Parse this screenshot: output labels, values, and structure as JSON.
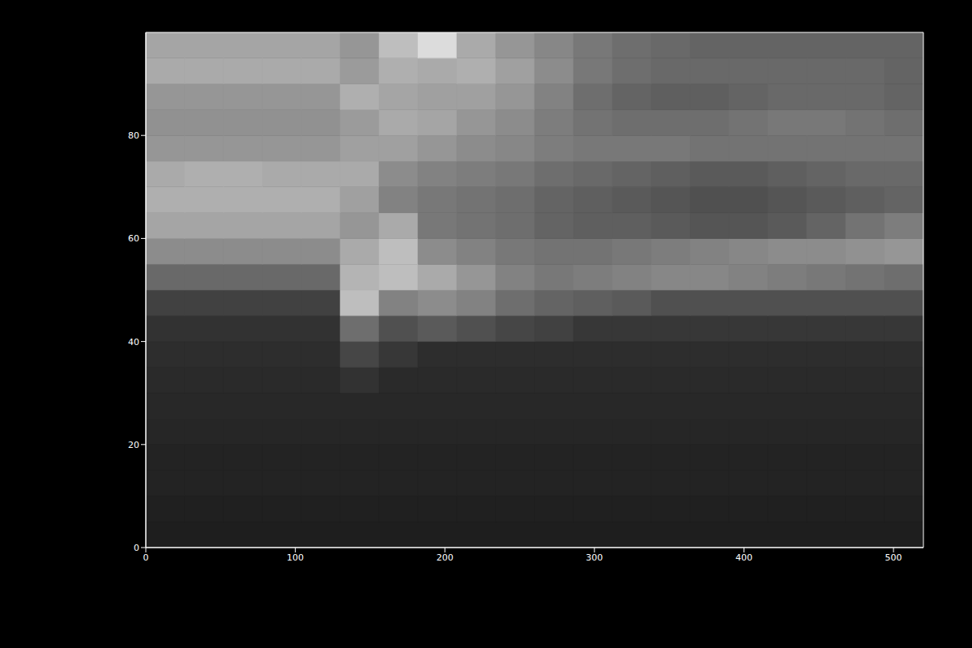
{
  "chart_data": {
    "type": "heatmap",
    "xlim": [
      0,
      520
    ],
    "ylim": [
      0,
      100
    ],
    "xticks": [
      0,
      100,
      200,
      300,
      400,
      500
    ],
    "yticks": [
      0,
      20,
      40,
      60,
      80
    ],
    "cell_x": [
      0,
      26,
      52,
      78,
      104,
      130,
      156,
      182,
      208,
      234,
      260,
      286,
      312,
      338,
      364,
      390,
      416,
      442,
      468,
      494,
      520
    ],
    "cell_y": [
      0,
      5,
      10,
      15,
      20,
      25,
      30,
      35,
      40,
      45,
      50,
      55,
      60,
      65,
      70,
      75,
      80,
      85,
      90,
      95,
      100
    ],
    "zlim": [
      0,
      255
    ],
    "z": [
      [
        30,
        30,
        30,
        30,
        30,
        30,
        30,
        30,
        30,
        30,
        30,
        30,
        30,
        30,
        30,
        30,
        30,
        30,
        30,
        30
      ],
      [
        32,
        32,
        32,
        32,
        32,
        32,
        32,
        32,
        32,
        32,
        32,
        32,
        32,
        32,
        32,
        32,
        32,
        32,
        32,
        32
      ],
      [
        35,
        35,
        35,
        35,
        35,
        35,
        35,
        35,
        35,
        35,
        35,
        35,
        35,
        35,
        35,
        35,
        35,
        35,
        35,
        35
      ],
      [
        35,
        35,
        35,
        35,
        35,
        35,
        35,
        35,
        35,
        35,
        35,
        35,
        35,
        35,
        35,
        35,
        35,
        35,
        35,
        35
      ],
      [
        38,
        38,
        38,
        38,
        38,
        38,
        38,
        38,
        38,
        38,
        38,
        38,
        38,
        38,
        38,
        38,
        38,
        38,
        38,
        38
      ],
      [
        40,
        40,
        40,
        40,
        40,
        40,
        40,
        40,
        40,
        40,
        40,
        40,
        40,
        40,
        40,
        40,
        40,
        40,
        40,
        40
      ],
      [
        42,
        42,
        42,
        42,
        42,
        50,
        42,
        42,
        42,
        42,
        42,
        42,
        42,
        42,
        42,
        42,
        42,
        42,
        42,
        42
      ],
      [
        45,
        45,
        45,
        45,
        45,
        70,
        55,
        45,
        45,
        45,
        45,
        45,
        45,
        45,
        45,
        45,
        45,
        45,
        45,
        45
      ],
      [
        50,
        50,
        50,
        50,
        50,
        110,
        80,
        90,
        80,
        70,
        65,
        55,
        55,
        55,
        55,
        55,
        55,
        55,
        55,
        55
      ],
      [
        65,
        65,
        65,
        65,
        65,
        190,
        130,
        140,
        130,
        110,
        100,
        95,
        90,
        80,
        80,
        80,
        80,
        80,
        80,
        80
      ],
      [
        105,
        105,
        105,
        105,
        105,
        180,
        190,
        170,
        150,
        130,
        120,
        125,
        130,
        135,
        135,
        130,
        125,
        120,
        115,
        110
      ],
      [
        140,
        140,
        140,
        140,
        140,
        170,
        190,
        140,
        130,
        120,
        115,
        115,
        120,
        125,
        130,
        135,
        140,
        140,
        145,
        150
      ],
      [
        165,
        165,
        165,
        165,
        165,
        150,
        170,
        120,
        115,
        110,
        100,
        95,
        95,
        90,
        85,
        85,
        90,
        100,
        115,
        125
      ],
      [
        175,
        175,
        175,
        175,
        175,
        160,
        130,
        120,
        115,
        110,
        100,
        95,
        90,
        85,
        80,
        80,
        85,
        90,
        95,
        100
      ],
      [
        170,
        175,
        175,
        170,
        170,
        170,
        140,
        130,
        125,
        120,
        110,
        105,
        100,
        95,
        90,
        90,
        95,
        100,
        105,
        105
      ],
      [
        150,
        150,
        150,
        150,
        150,
        160,
        160,
        150,
        140,
        135,
        125,
        120,
        120,
        120,
        115,
        115,
        115,
        115,
        115,
        115
      ],
      [
        145,
        145,
        145,
        145,
        145,
        155,
        170,
        165,
        150,
        140,
        125,
        115,
        110,
        110,
        110,
        115,
        120,
        120,
        115,
        110
      ],
      [
        150,
        150,
        150,
        150,
        150,
        175,
        165,
        160,
        160,
        150,
        130,
        110,
        100,
        95,
        95,
        100,
        105,
        105,
        105,
        100
      ],
      [
        170,
        170,
        170,
        170,
        170,
        155,
        175,
        170,
        175,
        160,
        140,
        120,
        110,
        105,
        105,
        105,
        105,
        105,
        105,
        100
      ],
      [
        165,
        165,
        165,
        165,
        165,
        150,
        190,
        220,
        170,
        150,
        135,
        120,
        110,
        105,
        100,
        100,
        100,
        100,
        100,
        100
      ]
    ]
  }
}
